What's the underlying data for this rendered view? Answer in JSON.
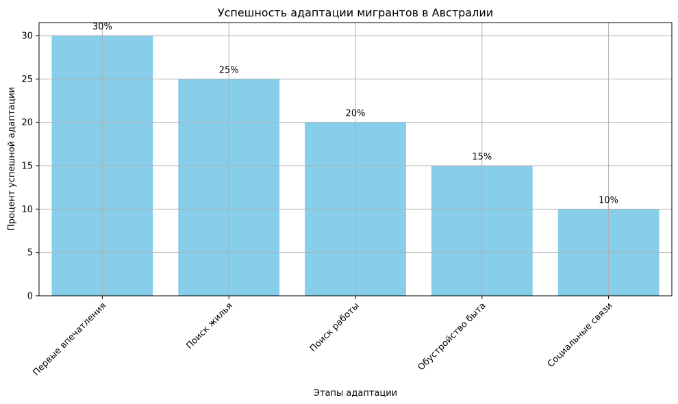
{
  "chart_data": {
    "type": "bar",
    "title": "Успешность адаптации мигрантов в Австралии",
    "xlabel": "Этапы адаптации",
    "ylabel": "Процент успешной адаптации",
    "categories": [
      "Первые впечатления",
      "Поиск жилья",
      "Поиск работы",
      "Обустройство быта",
      "Социальные связи"
    ],
    "values": [
      30,
      25,
      20,
      15,
      10
    ],
    "data_labels": [
      "30%",
      "25%",
      "20%",
      "15%",
      "10%"
    ],
    "ylim": [
      0,
      31.5
    ],
    "yticks": [
      0,
      5,
      10,
      15,
      20,
      25,
      30
    ],
    "grid": true,
    "bar_color": "#87CEEB",
    "grid_color": "#b0b0b0"
  }
}
